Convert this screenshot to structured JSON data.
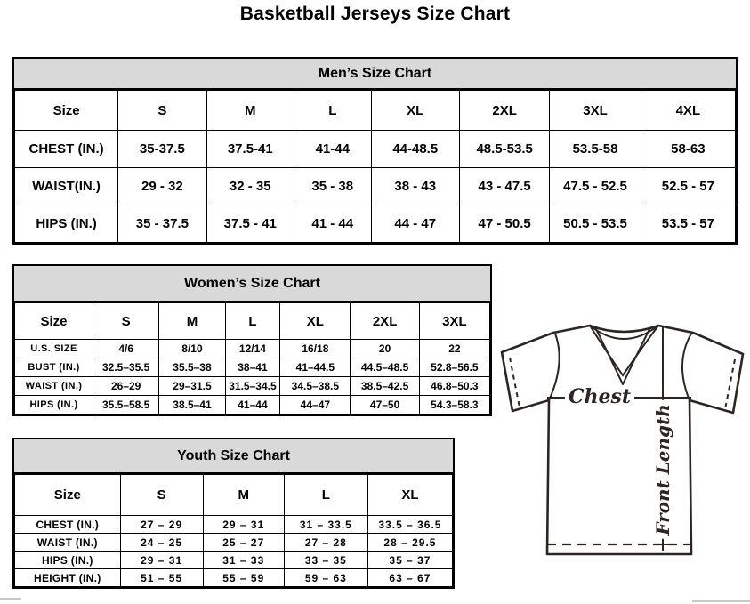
{
  "page": {
    "title": "Basketball Jerseys Size Chart"
  },
  "mens": {
    "title": "Men’s Size Chart",
    "header": [
      "Size",
      "S",
      "M",
      "L",
      "XL",
      "2XL",
      "3XL",
      "4XL"
    ],
    "rows": [
      {
        "label": "CHEST (IN.)",
        "values": [
          "35-37.5",
          "37.5-41",
          "41-44",
          "44-48.5",
          "48.5-53.5",
          "53.5-58",
          "58-63"
        ]
      },
      {
        "label": "WAIST(IN.)",
        "values": [
          "29 - 32",
          "32 - 35",
          "35 - 38",
          "38 - 43",
          "43 - 47.5",
          "47.5 - 52.5",
          "52.5 - 57"
        ]
      },
      {
        "label": "HIPS (IN.)",
        "values": [
          "35 - 37.5",
          "37.5 - 41",
          "41 - 44",
          "44 - 47",
          "47 - 50.5",
          "50.5 - 53.5",
          "53.5 - 57"
        ]
      }
    ]
  },
  "womens": {
    "title": "Women’s Size Chart",
    "header": [
      "Size",
      "S",
      "M",
      "L",
      "XL",
      "2XL",
      "3XL"
    ],
    "rows": [
      {
        "label": "U.S. SIZE",
        "values": [
          "4/6",
          "8/10",
          "12/14",
          "16/18",
          "20",
          "22"
        ]
      },
      {
        "label": "BUST (IN.)",
        "values": [
          "32.5–35.5",
          "35.5–38",
          "38–41",
          "41–44.5",
          "44.5–48.5",
          "52.8–56.5"
        ]
      },
      {
        "label": "WAIST (IN.)",
        "values": [
          "26–29",
          "29–31.5",
          "31.5–34.5",
          "34.5–38.5",
          "38.5–42.5",
          "46.8–50.3"
        ]
      },
      {
        "label": "HIPS (IN.)",
        "values": [
          "35.5–58.5",
          "38.5–41",
          "41–44",
          "44–47",
          "47–50",
          "54.3–58.3"
        ]
      }
    ]
  },
  "youth": {
    "title": "Youth Size Chart",
    "header": [
      "Size",
      "S",
      "M",
      "L",
      "XL"
    ],
    "rows": [
      {
        "label": "CHEST (IN.)",
        "values": [
          "27 – 29",
          "29 – 31",
          "31 – 33.5",
          "33.5 – 36.5"
        ]
      },
      {
        "label": "WAIST (IN.)",
        "values": [
          "24 – 25",
          "25 – 27",
          "27 – 28",
          "28 – 29.5"
        ]
      },
      {
        "label": "HIPS (IN.)",
        "values": [
          "29 – 31",
          "31 – 33",
          "33 – 35",
          "35 – 37"
        ]
      },
      {
        "label": "HEIGHT (IN.)",
        "values": [
          "51 – 55",
          "55 – 59",
          "59 – 63",
          "63 – 67"
        ]
      }
    ]
  },
  "diagram": {
    "chest_label": "Chest",
    "front_length_label": "Front Length"
  },
  "icons": {
    "jersey": "v-neck-jersey-outline"
  },
  "colors": {
    "table_header_bg": "#d9d9d9",
    "border": "#000000",
    "jersey_stroke": "#2b2523",
    "scrollbar_fragment": "#c9c9c9"
  }
}
